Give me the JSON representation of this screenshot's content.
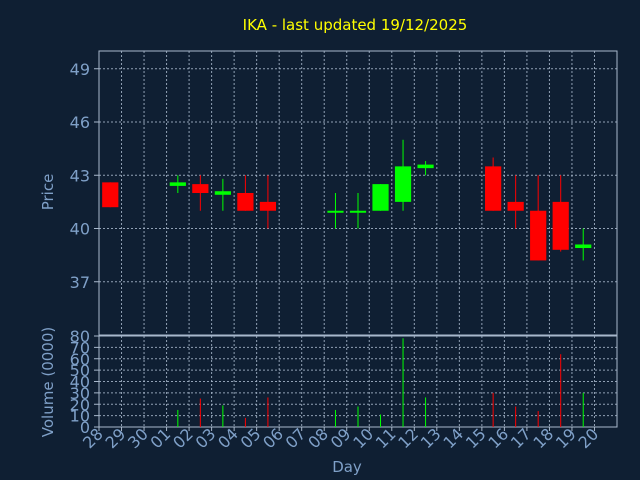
{
  "colors": {
    "background": "#0f1f33",
    "title": "#ffff00",
    "axis_text": "#7fa0c8",
    "axis_line": "#a8b8cc",
    "grid": "#a8b8cc",
    "up": "#00ff00",
    "down": "#ff0000"
  },
  "chart_data": [
    {
      "type": "candlestick",
      "title": "IKA - last updated 19/12/2025",
      "ylabel": "Price",
      "ylim": [
        34,
        50
      ],
      "yticks": [
        37,
        40,
        43,
        46,
        49
      ],
      "grid": true,
      "categories": [
        "28",
        "29",
        "30",
        "01",
        "02",
        "03",
        "04",
        "05",
        "06",
        "07",
        "08",
        "09",
        "10",
        "11",
        "12",
        "13",
        "14",
        "15",
        "16",
        "17",
        "18",
        "19",
        "20"
      ],
      "candles": [
        {
          "x": "28",
          "open": 42.6,
          "high": 42.6,
          "low": 41.2,
          "close": 41.2
        },
        {
          "x": "01",
          "open": 42.4,
          "high": 43.0,
          "low": 42.0,
          "close": 42.6
        },
        {
          "x": "02",
          "open": 42.5,
          "high": 43.0,
          "low": 41.0,
          "close": 42.0
        },
        {
          "x": "03",
          "open": 41.9,
          "high": 42.8,
          "low": 41.0,
          "close": 42.1
        },
        {
          "x": "04",
          "open": 42.0,
          "high": 43.0,
          "low": 41.0,
          "close": 41.0
        },
        {
          "x": "05",
          "open": 41.5,
          "high": 43.0,
          "low": 40.0,
          "close": 41.0
        },
        {
          "x": "08",
          "open": 40.9,
          "high": 42.0,
          "low": 40.0,
          "close": 41.0
        },
        {
          "x": "09",
          "open": 40.9,
          "high": 42.0,
          "low": 40.0,
          "close": 41.0
        },
        {
          "x": "10",
          "open": 41.0,
          "high": 42.5,
          "low": 41.0,
          "close": 42.5
        },
        {
          "x": "11",
          "open": 41.5,
          "high": 45.0,
          "low": 41.0,
          "close": 43.5
        },
        {
          "x": "12",
          "open": 43.4,
          "high": 43.8,
          "low": 43.0,
          "close": 43.6
        },
        {
          "x": "15",
          "open": 43.5,
          "high": 44.0,
          "low": 41.0,
          "close": 41.0
        },
        {
          "x": "16",
          "open": 41.5,
          "high": 43.0,
          "low": 40.0,
          "close": 41.0
        },
        {
          "x": "17",
          "open": 41.0,
          "high": 43.0,
          "low": 38.2,
          "close": 38.2
        },
        {
          "x": "18",
          "open": 41.5,
          "high": 43.0,
          "low": 38.7,
          "close": 38.8
        },
        {
          "x": "19",
          "open": 38.9,
          "high": 40.0,
          "low": 38.2,
          "close": 39.1
        }
      ]
    },
    {
      "type": "bar",
      "xlabel": "Day",
      "ylabel": "Volume (0000)",
      "ylim": [
        0,
        80
      ],
      "yticks": [
        0,
        10,
        20,
        30,
        40,
        50,
        60,
        70,
        80
      ],
      "grid": true,
      "categories": [
        "28",
        "29",
        "30",
        "01",
        "02",
        "03",
        "04",
        "05",
        "06",
        "07",
        "08",
        "09",
        "10",
        "11",
        "12",
        "13",
        "14",
        "15",
        "16",
        "17",
        "18",
        "19",
        "20"
      ],
      "bars": [
        {
          "x": "01",
          "value": 15,
          "direction": "up"
        },
        {
          "x": "02",
          "value": 25,
          "direction": "down"
        },
        {
          "x": "03",
          "value": 19,
          "direction": "up"
        },
        {
          "x": "04",
          "value": 8,
          "direction": "down"
        },
        {
          "x": "05",
          "value": 26,
          "direction": "down"
        },
        {
          "x": "08",
          "value": 15,
          "direction": "up"
        },
        {
          "x": "09",
          "value": 18,
          "direction": "up"
        },
        {
          "x": "10",
          "value": 11,
          "direction": "up"
        },
        {
          "x": "11",
          "value": 78,
          "direction": "up"
        },
        {
          "x": "12",
          "value": 26,
          "direction": "up"
        },
        {
          "x": "15",
          "value": 30,
          "direction": "down"
        },
        {
          "x": "16",
          "value": 18,
          "direction": "down"
        },
        {
          "x": "17",
          "value": 14,
          "direction": "down"
        },
        {
          "x": "18",
          "value": 64,
          "direction": "down"
        },
        {
          "x": "19",
          "value": 30,
          "direction": "up"
        }
      ]
    }
  ]
}
